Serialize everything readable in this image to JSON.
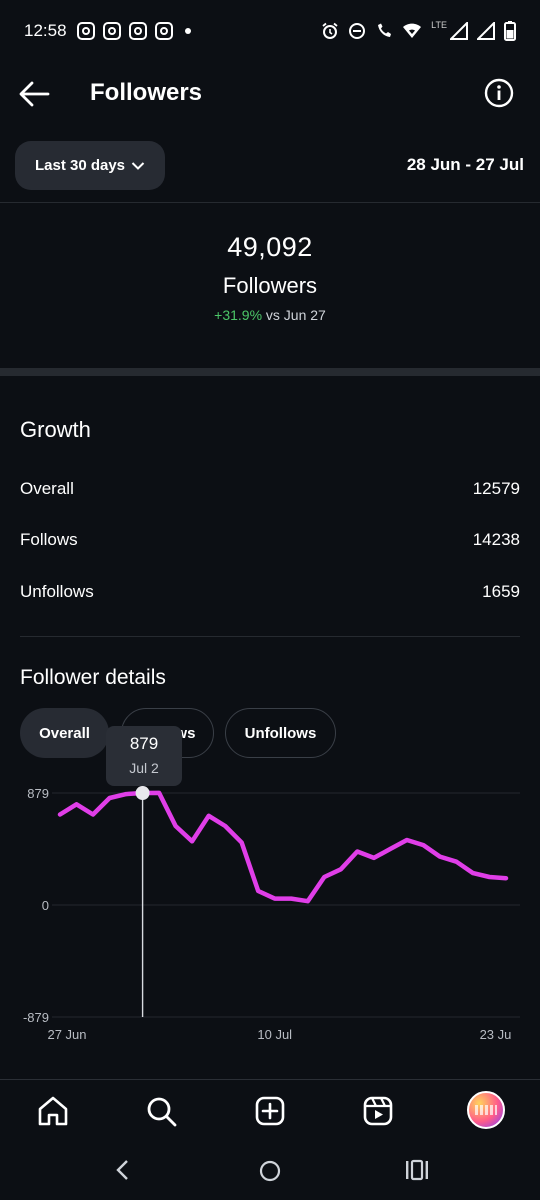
{
  "status_bar": {
    "time": "12:58",
    "network_label": "LTE",
    "icons": [
      "instagram-icon",
      "instagram-icon",
      "instagram-icon",
      "instagram-icon",
      "alarm-icon",
      "dnd-icon",
      "wifi-call-icon",
      "wifi-icon",
      "signal-icon",
      "signal-icon",
      "battery-icon"
    ]
  },
  "header": {
    "title": "Followers",
    "back_icon": "back-arrow-icon",
    "info_icon": "info-icon"
  },
  "range": {
    "selector_label": "Last 30 days",
    "date_range": "28 Jun - 27 Jul"
  },
  "summary": {
    "count": "49,092",
    "label": "Followers",
    "change_pct": "+31.9%",
    "change_suffix": "vs Jun 27"
  },
  "growth": {
    "title": "Growth",
    "rows": [
      {
        "label": "Overall",
        "value": "12579"
      },
      {
        "label": "Follows",
        "value": "14238"
      },
      {
        "label": "Unfollows",
        "value": "1659"
      }
    ]
  },
  "details": {
    "title": "Follower details",
    "tabs": [
      {
        "label": "Overall",
        "active": true
      },
      {
        "label": "Follows",
        "active": false
      },
      {
        "label": "Unfollows",
        "active": false
      }
    ],
    "tooltip": {
      "value": "879",
      "date": "Jul 2"
    }
  },
  "chart_data": {
    "type": "line",
    "x": [
      "27 Jun",
      "28 Jun",
      "29 Jun",
      "30 Jun",
      "1 Jul",
      "2 Jul",
      "3 Jul",
      "4 Jul",
      "5 Jul",
      "6 Jul",
      "7 Jul",
      "8 Jul",
      "9 Jul",
      "10 Jul",
      "11 Jul",
      "12 Jul",
      "13 Jul",
      "14 Jul",
      "15 Jul",
      "16 Jul",
      "17 Jul",
      "18 Jul",
      "19 Jul",
      "20 Jul",
      "21 Jul",
      "22 Jul",
      "23 Jul",
      "24 Jul"
    ],
    "values": [
      710,
      790,
      710,
      840,
      870,
      879,
      880,
      620,
      500,
      700,
      620,
      490,
      110,
      50,
      50,
      30,
      220,
      280,
      420,
      370,
      440,
      510,
      470,
      380,
      340,
      250,
      220,
      210
    ],
    "y_ticks": [
      "879",
      "0",
      "-879"
    ],
    "x_ticks": [
      "27 Jun",
      "10 Jul",
      "23 Ju"
    ],
    "ylim": [
      -879,
      879
    ],
    "line_color": "#e03ee8",
    "grid": true
  },
  "bottom_nav": {
    "items": [
      "home-icon",
      "search-icon",
      "create-icon",
      "reels-icon",
      "profile-avatar"
    ]
  }
}
